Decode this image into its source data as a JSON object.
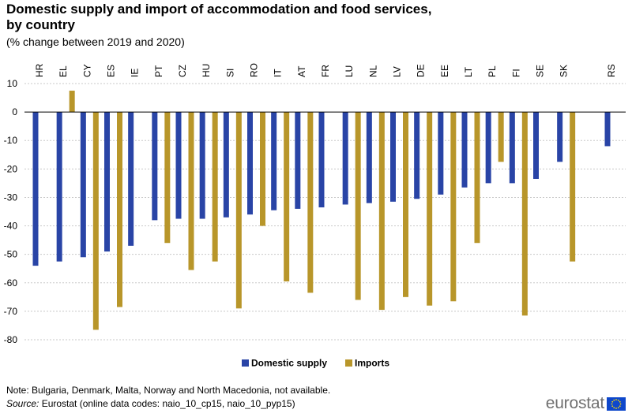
{
  "title_line1": "Domestic supply and import of accommodation and food services,",
  "title_line2": "by country",
  "subtitle": "(% change between 2019 and 2020)",
  "note": "Note: Bulgaria, Denmark, Malta, Norway and North Macedonia, not available.",
  "source_label": "Source:",
  "source_text": " Eurostat (online data codes: naio_10_cp15, naio_10_pyp15)",
  "logo_text": "eurostat",
  "colors": {
    "domestic": "#2944a6",
    "imports": "#b8962a",
    "grid": "#c8c8c8",
    "axis": "#000000"
  },
  "chart_data": {
    "type": "bar",
    "title": "Domestic supply and import of accommodation and food services, by country",
    "subtitle": "(% change between 2019 and 2020)",
    "xlabel": "",
    "ylabel": "",
    "ylim": [
      -80,
      10
    ],
    "yticks": [
      10,
      0,
      -10,
      -20,
      -30,
      -40,
      -50,
      -60,
      -70,
      -80
    ],
    "grid": true,
    "legend_position": "bottom",
    "categories": [
      "HR",
      "EL",
      "CY",
      "ES",
      "IE",
      "PT",
      "CZ",
      "HU",
      "SI",
      "RO",
      "IT",
      "AT",
      "FR",
      "LU",
      "NL",
      "LV",
      "DE",
      "EE",
      "LT",
      "PL",
      "FI",
      "SE",
      "SK",
      "",
      "RS"
    ],
    "series": [
      {
        "name": "Domestic supply",
        "values": [
          -54,
          -52.5,
          -51,
          -49,
          -47,
          -38,
          -37.5,
          -37.5,
          -37,
          -36,
          -34.5,
          -34,
          -33.5,
          -32.5,
          -32,
          -31.5,
          -30.5,
          -29,
          -26.5,
          -25,
          -25,
          -23.5,
          -17.5,
          null,
          -12
        ]
      },
      {
        "name": "Imports",
        "values": [
          null,
          7.5,
          -76.5,
          -68.5,
          null,
          -46,
          -55.5,
          -52.5,
          -69,
          -40,
          -59.5,
          -63.5,
          null,
          -66,
          -69.5,
          -65,
          -68,
          -66.5,
          -46,
          -17.5,
          -71.5,
          null,
          -52.5,
          null,
          null
        ]
      }
    ]
  }
}
